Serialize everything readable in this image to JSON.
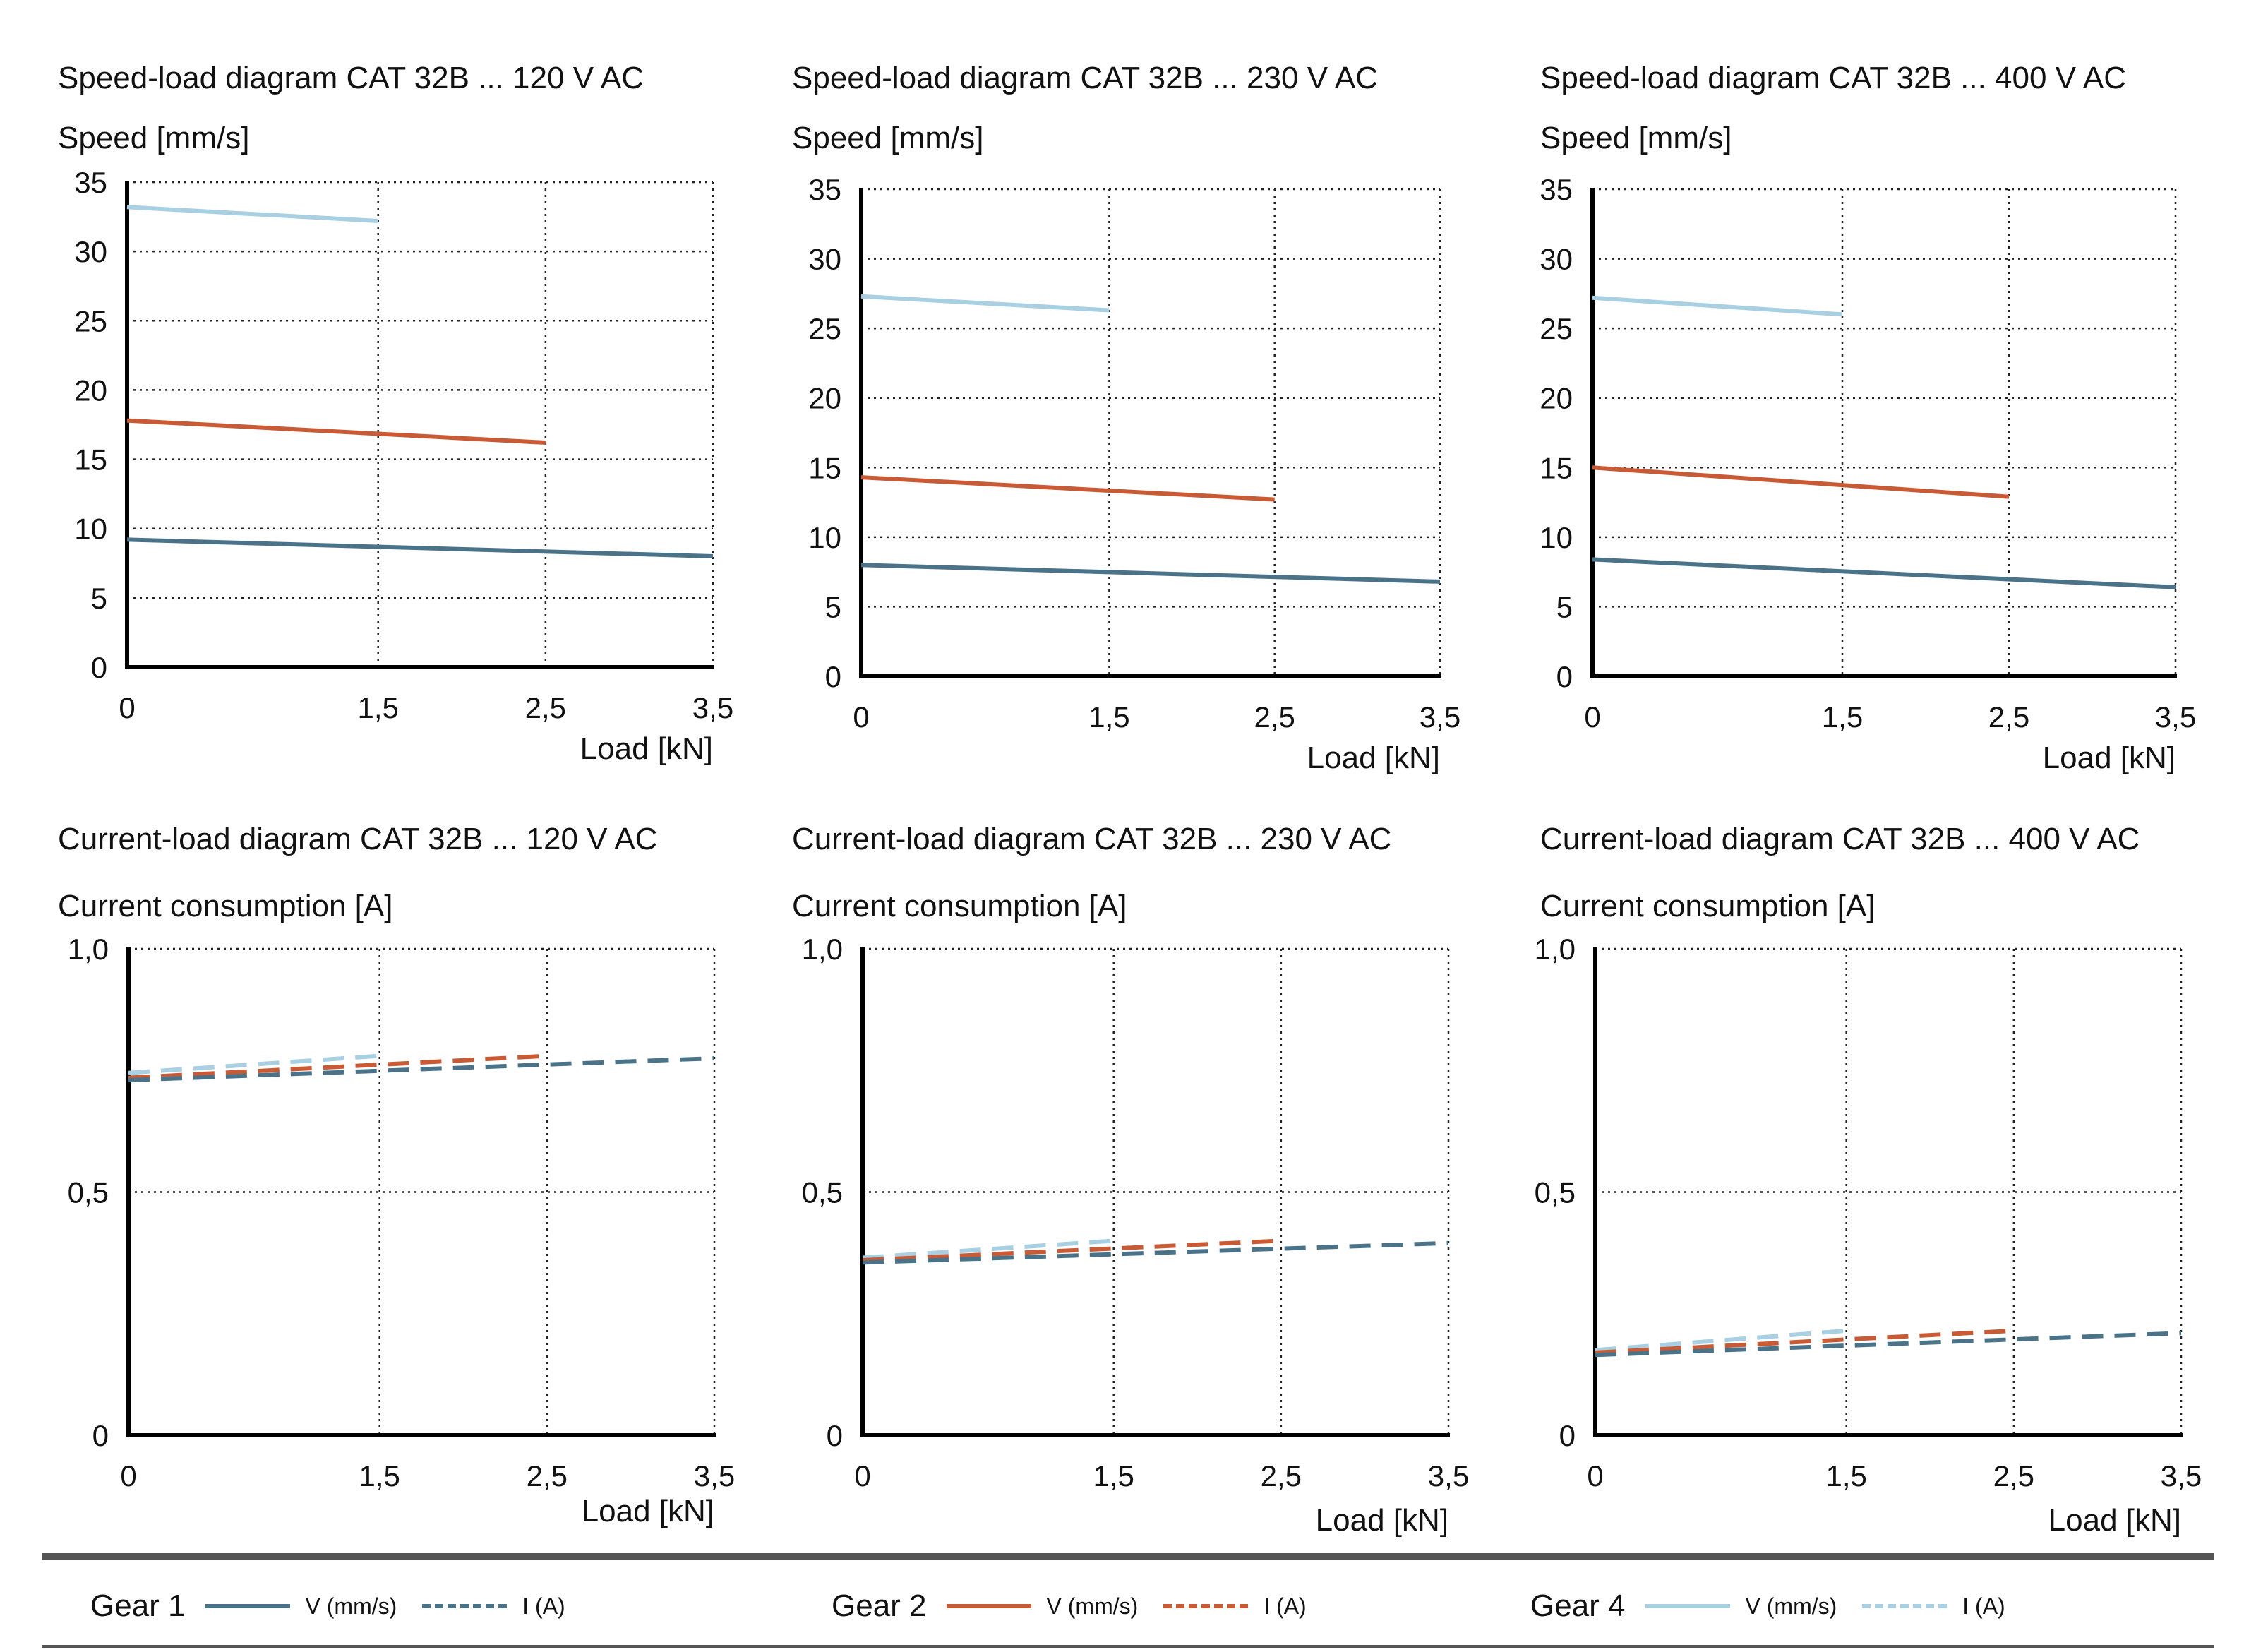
{
  "colors": {
    "gear1": "#4a7389",
    "gear2": "#c85a35",
    "gear4": "#a9cfe3"
  },
  "chart_data": [
    {
      "type": "line",
      "title": "Speed-load diagram  CAT 32B ... 120 V AC",
      "ylabel": "Speed [mm/s]",
      "xlabel": "Load [kN]",
      "xticks": [
        "0",
        "1,5",
        "2,5",
        "3,5"
      ],
      "yticks": [
        "0",
        "5",
        "10",
        "15",
        "20",
        "25",
        "30",
        "35"
      ],
      "xlim": [
        0,
        3.5
      ],
      "ylim": [
        0,
        35
      ],
      "grid": true,
      "series": [
        {
          "gear": "gear4",
          "style": "solid",
          "points": [
            [
              0,
              33.2
            ],
            [
              1.5,
              32.2
            ]
          ]
        },
        {
          "gear": "gear2",
          "style": "solid",
          "points": [
            [
              0,
              17.8
            ],
            [
              2.5,
              16.2
            ]
          ]
        },
        {
          "gear": "gear1",
          "style": "solid",
          "points": [
            [
              0,
              9.2
            ],
            [
              3.5,
              8.0
            ]
          ]
        }
      ]
    },
    {
      "type": "line",
      "title": "Speed-load diagram  CAT 32B ... 230 V AC",
      "ylabel": "Speed [mm/s]",
      "xlabel": "Load [kN]",
      "xticks": [
        "0",
        "1,5",
        "2,5",
        "3,5"
      ],
      "yticks": [
        "0",
        "5",
        "10",
        "15",
        "20",
        "25",
        "30",
        "35"
      ],
      "xlim": [
        0,
        3.5
      ],
      "ylim": [
        0,
        35
      ],
      "grid": true,
      "series": [
        {
          "gear": "gear4",
          "style": "solid",
          "points": [
            [
              0,
              27.3
            ],
            [
              1.5,
              26.3
            ]
          ]
        },
        {
          "gear": "gear2",
          "style": "solid",
          "points": [
            [
              0,
              14.3
            ],
            [
              2.5,
              12.7
            ]
          ]
        },
        {
          "gear": "gear1",
          "style": "solid",
          "points": [
            [
              0,
              8.0
            ],
            [
              3.5,
              6.8
            ]
          ]
        }
      ]
    },
    {
      "type": "line",
      "title": "Speed-load diagram  CAT 32B ... 400 V AC",
      "ylabel": "Speed [mm/s]",
      "xlabel": "Load [kN]",
      "xticks": [
        "0",
        "1,5",
        "2,5",
        "3,5"
      ],
      "yticks": [
        "0",
        "5",
        "10",
        "15",
        "20",
        "25",
        "30",
        "35"
      ],
      "xlim": [
        0,
        3.5
      ],
      "ylim": [
        0,
        35
      ],
      "grid": true,
      "series": [
        {
          "gear": "gear4",
          "style": "solid",
          "points": [
            [
              0,
              27.2
            ],
            [
              1.5,
              26.0
            ]
          ]
        },
        {
          "gear": "gear2",
          "style": "solid",
          "points": [
            [
              0,
              15.0
            ],
            [
              2.5,
              12.9
            ]
          ]
        },
        {
          "gear": "gear1",
          "style": "solid",
          "points": [
            [
              0,
              8.4
            ],
            [
              3.5,
              6.4
            ]
          ]
        }
      ]
    },
    {
      "type": "line",
      "title": "Current-load diagram  CAT 32B ... 120 V AC",
      "ylabel": "Current consumption [A]",
      "xlabel": "Load [kN]",
      "xticks": [
        "0",
        "1,5",
        "2,5",
        "3,5"
      ],
      "yticks": [
        "0",
        "0,5",
        "1,0"
      ],
      "xlim": [
        0,
        3.5
      ],
      "ylim": [
        0,
        1.0
      ],
      "grid": true,
      "series": [
        {
          "gear": "gear4",
          "style": "dashed",
          "points": [
            [
              0,
              0.745
            ],
            [
              1.5,
              0.78
            ]
          ]
        },
        {
          "gear": "gear2",
          "style": "dashed",
          "points": [
            [
              0,
              0.735
            ],
            [
              2.5,
              0.78
            ]
          ]
        },
        {
          "gear": "gear1",
          "style": "dashed",
          "points": [
            [
              0,
              0.73
            ],
            [
              3.5,
              0.775
            ]
          ]
        }
      ]
    },
    {
      "type": "line",
      "title": "Current-load diagram  CAT 32B ... 230 V AC",
      "ylabel": "Current consumption [A]",
      "xlabel": "Load [kN]",
      "xticks": [
        "0",
        "1,5",
        "2,5",
        "3,5"
      ],
      "yticks": [
        "0",
        "0,5",
        "1,0"
      ],
      "xlim": [
        0,
        3.5
      ],
      "ylim": [
        0,
        1.0
      ],
      "grid": true,
      "series": [
        {
          "gear": "gear4",
          "style": "dashed",
          "points": [
            [
              0,
              0.365
            ],
            [
              1.5,
              0.4
            ]
          ]
        },
        {
          "gear": "gear2",
          "style": "dashed",
          "points": [
            [
              0,
              0.36
            ],
            [
              2.5,
              0.4
            ]
          ]
        },
        {
          "gear": "gear1",
          "style": "dashed",
          "points": [
            [
              0,
              0.355
            ],
            [
              3.5,
              0.395
            ]
          ]
        }
      ]
    },
    {
      "type": "line",
      "title": "Current-load diagram  CAT 32B ... 400 V AC",
      "ylabel": "Current consumption [A]",
      "xlabel": "Load [kN]",
      "xticks": [
        "0",
        "1,5",
        "2,5",
        "3,5"
      ],
      "yticks": [
        "0",
        "0,5",
        "1,0"
      ],
      "xlim": [
        0,
        3.5
      ],
      "ylim": [
        0,
        1.0
      ],
      "grid": true,
      "series": [
        {
          "gear": "gear4",
          "style": "dashed",
          "points": [
            [
              0,
              0.175
            ],
            [
              1.5,
              0.215
            ]
          ]
        },
        {
          "gear": "gear2",
          "style": "dashed",
          "points": [
            [
              0,
              0.17
            ],
            [
              2.5,
              0.215
            ]
          ]
        },
        {
          "gear": "gear1",
          "style": "dashed",
          "points": [
            [
              0,
              0.165
            ],
            [
              3.5,
              0.21
            ]
          ]
        }
      ]
    }
  ],
  "legend": [
    {
      "key": "gear1",
      "label": "Gear 1",
      "v_label": "V (mm/s)",
      "i_label": "I (A)"
    },
    {
      "key": "gear2",
      "label": "Gear 2",
      "v_label": "V (mm/s)",
      "i_label": "I (A)"
    },
    {
      "key": "gear4",
      "label": "Gear 4",
      "v_label": "V (mm/s)",
      "i_label": "I (A)"
    }
  ]
}
